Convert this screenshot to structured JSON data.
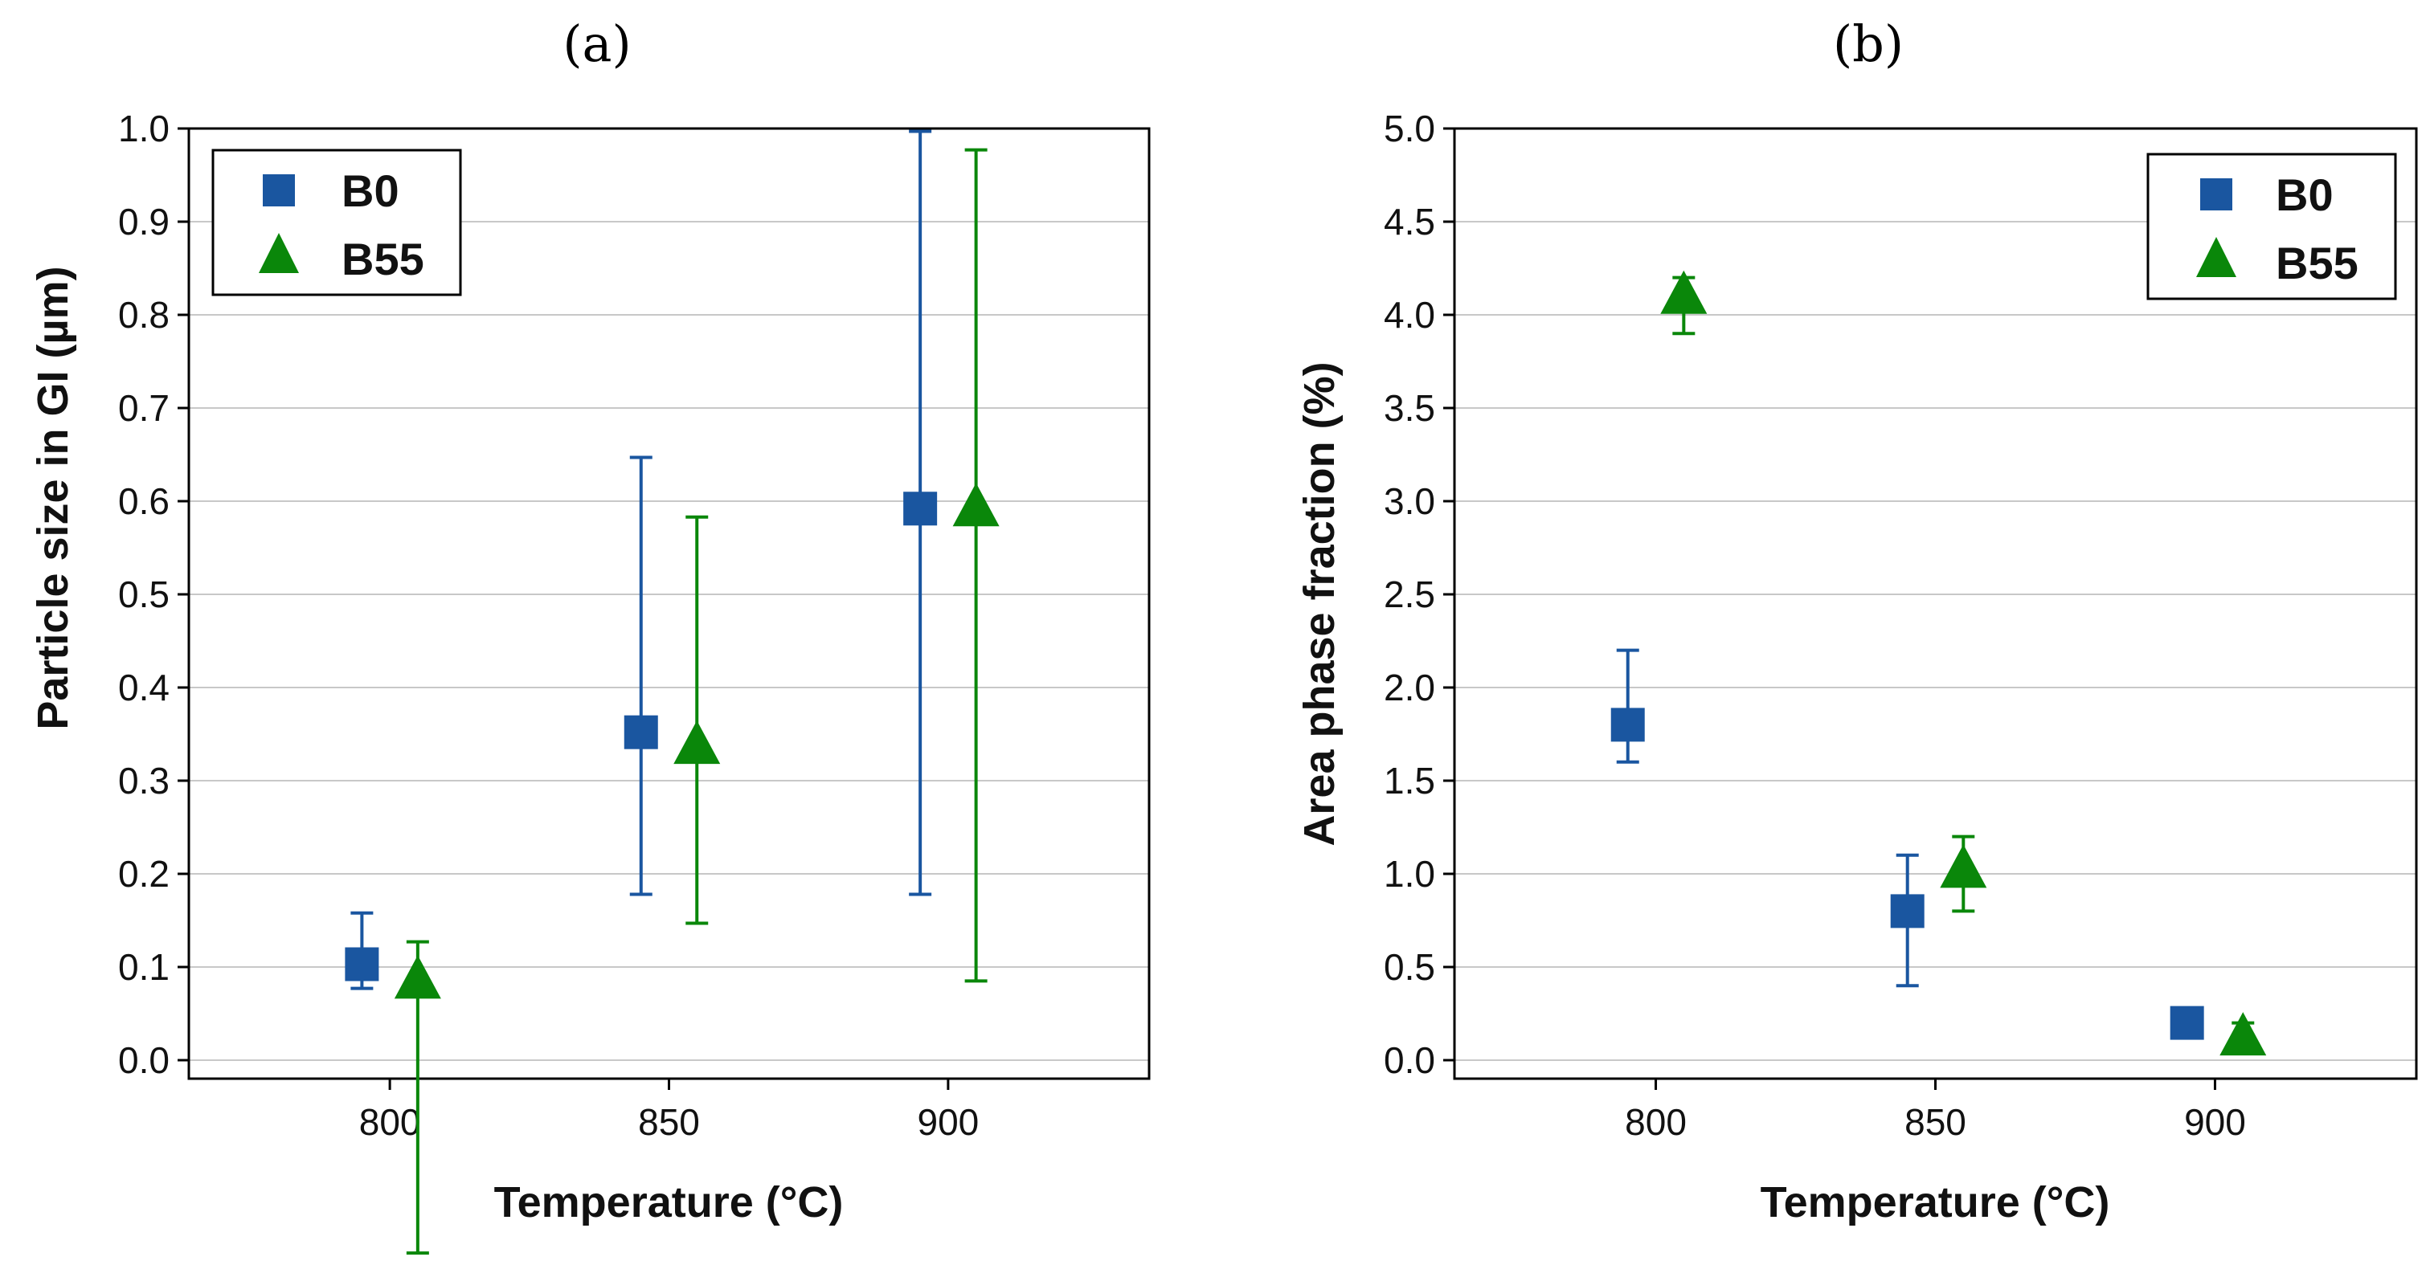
{
  "colors": {
    "b0": "#1a56a0",
    "b55": "#0a870a",
    "grid": "#c8c8c8",
    "axis": "#000000"
  },
  "chart_data": [
    {
      "panel_label": "(a)",
      "type": "scatter",
      "xlabel": "Temperature (°C)",
      "ylabel": "Particle size in GI (µm)",
      "xlim": [
        764,
        936
      ],
      "ylim": [
        0.0,
        1.0
      ],
      "xticks": [
        800,
        850,
        900
      ],
      "xtick_labels": [
        "800",
        "850",
        "900"
      ],
      "yticks": [
        0.0,
        0.1,
        0.2,
        0.3,
        0.4,
        0.5,
        0.6,
        0.7,
        0.8,
        0.9,
        1.0
      ],
      "ytick_labels": [
        "0.0",
        "0.1",
        "0.2",
        "0.3",
        "0.4",
        "0.5",
        "0.6",
        "0.7",
        "0.8",
        "0.9",
        "1.0"
      ],
      "grid": true,
      "legend_position": "top-left",
      "series": [
        {
          "name": "B0",
          "marker": "square",
          "color": "#1a56a0",
          "x": [
            795,
            845,
            895
          ],
          "y": [
            0.103,
            0.352,
            0.592
          ],
          "err_low": [
            0.077,
            0.178,
            0.178
          ],
          "err_high": [
            0.158,
            0.647,
            0.997
          ]
        },
        {
          "name": "B55",
          "marker": "triangle",
          "color": "#0a870a",
          "x": [
            805,
            855,
            905
          ],
          "y": [
            0.085,
            0.337,
            0.592
          ],
          "err_low": [
            -0.207,
            0.147,
            0.085
          ],
          "err_high": [
            0.127,
            0.583,
            0.977
          ]
        }
      ]
    },
    {
      "panel_label": "(b)",
      "type": "scatter",
      "xlabel": "Temperature (°C)",
      "ylabel": "Area phase fraction (%)",
      "xlim": [
        764,
        936
      ],
      "ylim": [
        0.0,
        5.0
      ],
      "xticks": [
        800,
        850,
        900
      ],
      "xtick_labels": [
        "800",
        "850",
        "900"
      ],
      "yticks": [
        0.0,
        0.5,
        1.0,
        1.5,
        2.0,
        2.5,
        3.0,
        3.5,
        4.0,
        4.5,
        5.0
      ],
      "ytick_labels": [
        "0.0",
        "0.5",
        "1.0",
        "1.5",
        "2.0",
        "2.5",
        "3.0",
        "3.5",
        "4.0",
        "4.5",
        "5.0"
      ],
      "grid": true,
      "legend_position": "top-right",
      "series": [
        {
          "name": "B0",
          "marker": "square",
          "color": "#1a56a0",
          "x": [
            795,
            845,
            895
          ],
          "y": [
            1.8,
            0.8,
            0.2
          ],
          "err_low": [
            1.6,
            0.4,
            0.15
          ],
          "err_high": [
            2.2,
            1.1,
            0.25
          ]
        },
        {
          "name": "B55",
          "marker": "triangle",
          "color": "#0a870a",
          "x": [
            805,
            855,
            905
          ],
          "y": [
            4.1,
            1.02,
            0.12
          ],
          "err_low": [
            3.9,
            0.8,
            0.1
          ],
          "err_high": [
            4.2,
            1.2,
            0.2
          ]
        }
      ]
    }
  ]
}
